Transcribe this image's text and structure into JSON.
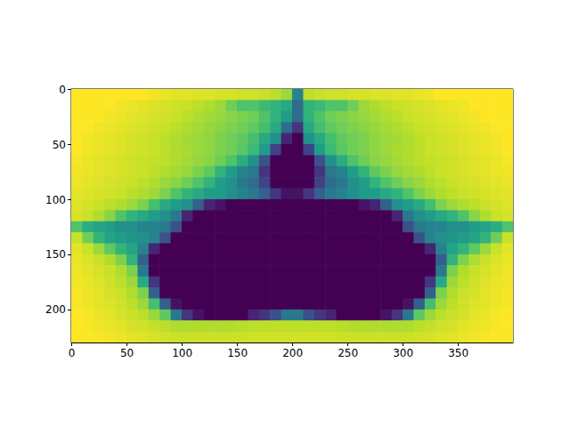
{
  "chart_data": {
    "type": "heatmap",
    "xlim": [
      -0.5,
      399.5
    ],
    "ylim": [
      229.5,
      -0.5
    ],
    "xticks": [
      0,
      50,
      100,
      150,
      200,
      250,
      300,
      350
    ],
    "yticks": [
      0,
      50,
      100,
      150,
      200
    ],
    "grid": false,
    "color_range": [
      0,
      100
    ],
    "x_edges": [
      -0.5,
      9.5,
      19.5,
      29.5,
      39.5,
      49.5,
      59.5,
      69.5,
      79.5,
      89.5,
      99.5,
      109.5,
      119.5,
      129.5,
      139.5,
      149.5,
      159.5,
      169.5,
      179.5,
      189.5,
      199.5,
      209.5,
      219.5,
      229.5,
      239.5,
      249.5,
      259.5,
      269.5,
      279.5,
      289.5,
      299.5,
      309.5,
      319.5,
      329.5,
      339.5,
      349.5,
      359.5,
      369.5,
      379.5,
      389.5,
      399.5
    ],
    "y_edges": [
      -0.5,
      9.5,
      19.5,
      29.5,
      39.5,
      49.5,
      59.5,
      69.5,
      79.5,
      89.5,
      99.5,
      109.5,
      119.5,
      129.5,
      139.5,
      149.5,
      159.5,
      169.5,
      179.5,
      189.5,
      199.5,
      209.5,
      219.5,
      229.5
    ],
    "cells": [
      [
        100,
        100,
        100,
        100,
        100,
        100,
        100,
        98,
        97,
        96,
        96,
        95,
        95,
        94,
        94,
        93,
        93,
        92,
        90,
        85,
        45,
        90,
        92,
        93,
        93,
        94,
        94,
        95,
        95,
        96,
        96,
        97,
        98,
        100,
        100,
        100,
        100,
        100,
        100,
        100
      ],
      [
        100,
        100,
        100,
        100,
        98,
        97,
        96,
        95,
        94,
        93,
        92,
        90,
        88,
        85,
        78,
        72,
        72,
        68,
        65,
        60,
        35,
        65,
        68,
        72,
        72,
        78,
        85,
        88,
        90,
        92,
        93,
        94,
        95,
        96,
        97,
        98,
        100,
        100,
        100,
        100
      ],
      [
        100,
        100,
        100,
        98,
        97,
        96,
        95,
        94,
        93,
        92,
        90,
        88,
        86,
        84,
        82,
        80,
        78,
        72,
        65,
        55,
        35,
        65,
        72,
        78,
        80,
        82,
        84,
        86,
        88,
        90,
        92,
        93,
        94,
        95,
        96,
        97,
        98,
        100,
        100,
        100
      ],
      [
        100,
        100,
        98,
        97,
        96,
        95,
        94,
        93,
        92,
        90,
        88,
        86,
        84,
        82,
        80,
        78,
        75,
        70,
        60,
        35,
        15,
        60,
        70,
        75,
        78,
        80,
        82,
        84,
        86,
        88,
        90,
        92,
        93,
        94,
        95,
        96,
        97,
        98,
        100,
        100
      ],
      [
        100,
        98,
        97,
        96,
        95,
        94,
        93,
        92,
        90,
        88,
        86,
        85,
        83,
        80,
        78,
        75,
        70,
        60,
        50,
        10,
        0,
        50,
        60,
        70,
        75,
        78,
        80,
        83,
        85,
        86,
        88,
        90,
        92,
        93,
        94,
        95,
        96,
        97,
        98,
        100
      ],
      [
        100,
        98,
        97,
        96,
        95,
        94,
        93,
        92,
        90,
        88,
        87,
        85,
        83,
        80,
        78,
        74,
        68,
        55,
        20,
        0,
        0,
        20,
        55,
        68,
        74,
        78,
        80,
        83,
        85,
        87,
        88,
        90,
        92,
        93,
        94,
        95,
        96,
        97,
        98,
        100
      ],
      [
        99,
        97,
        96,
        95,
        94,
        93,
        92,
        91,
        90,
        88,
        86,
        84,
        82,
        78,
        72,
        62,
        50,
        25,
        0,
        0,
        0,
        0,
        25,
        50,
        62,
        72,
        78,
        82,
        84,
        86,
        88,
        90,
        91,
        92,
        93,
        94,
        95,
        96,
        97,
        99
      ],
      [
        98,
        97,
        96,
        95,
        94,
        93,
        92,
        90,
        88,
        86,
        84,
        80,
        75,
        65,
        55,
        45,
        40,
        15,
        0,
        0,
        0,
        0,
        15,
        40,
        45,
        55,
        65,
        75,
        80,
        84,
        86,
        88,
        90,
        92,
        93,
        94,
        95,
        96,
        97,
        98
      ],
      [
        97,
        96,
        95,
        94,
        93,
        92,
        90,
        88,
        85,
        82,
        78,
        72,
        65,
        55,
        50,
        40,
        35,
        20,
        0,
        0,
        0,
        0,
        20,
        35,
        40,
        50,
        55,
        65,
        72,
        78,
        82,
        85,
        88,
        90,
        92,
        93,
        94,
        95,
        96,
        97
      ],
      [
        96,
        95,
        94,
        93,
        92,
        90,
        88,
        85,
        80,
        72,
        65,
        60,
        55,
        55,
        50,
        45,
        40,
        30,
        15,
        5,
        5,
        15,
        30,
        40,
        45,
        50,
        55,
        55,
        60,
        65,
        72,
        80,
        85,
        88,
        90,
        92,
        93,
        94,
        95,
        96
      ],
      [
        95,
        94,
        92,
        90,
        88,
        85,
        80,
        70,
        60,
        55,
        50,
        30,
        10,
        5,
        0,
        0,
        0,
        0,
        0,
        0,
        0,
        0,
        0,
        0,
        0,
        0,
        5,
        10,
        30,
        50,
        55,
        60,
        70,
        80,
        85,
        88,
        90,
        92,
        94,
        95
      ],
      [
        94,
        92,
        88,
        82,
        72,
        65,
        60,
        55,
        50,
        40,
        10,
        0,
        0,
        0,
        0,
        0,
        0,
        0,
        0,
        0,
        0,
        0,
        0,
        0,
        0,
        0,
        0,
        0,
        0,
        10,
        40,
        50,
        55,
        60,
        65,
        72,
        82,
        88,
        92,
        94
      ],
      [
        72,
        62,
        58,
        55,
        50,
        50,
        45,
        45,
        40,
        25,
        0,
        0,
        0,
        0,
        0,
        0,
        0,
        0,
        0,
        0,
        0,
        0,
        0,
        0,
        0,
        0,
        0,
        0,
        0,
        0,
        25,
        40,
        45,
        45,
        50,
        50,
        55,
        58,
        62,
        72
      ],
      [
        92,
        78,
        65,
        58,
        55,
        52,
        50,
        45,
        25,
        0,
        0,
        0,
        0,
        0,
        0,
        0,
        0,
        0,
        0,
        0,
        0,
        0,
        0,
        0,
        0,
        0,
        0,
        0,
        0,
        0,
        0,
        25,
        45,
        50,
        52,
        55,
        58,
        65,
        78,
        92
      ],
      [
        96,
        92,
        85,
        75,
        65,
        58,
        45,
        10,
        0,
        0,
        0,
        0,
        0,
        0,
        0,
        0,
        0,
        0,
        0,
        0,
        0,
        0,
        0,
        0,
        0,
        0,
        0,
        0,
        0,
        0,
        0,
        0,
        10,
        45,
        58,
        65,
        75,
        85,
        92,
        96
      ],
      [
        97,
        95,
        92,
        88,
        80,
        65,
        30,
        0,
        0,
        0,
        0,
        0,
        0,
        0,
        0,
        0,
        0,
        0,
        0,
        0,
        0,
        0,
        0,
        0,
        0,
        0,
        0,
        0,
        0,
        0,
        0,
        0,
        0,
        30,
        65,
        80,
        88,
        92,
        95,
        97
      ],
      [
        98,
        96,
        94,
        92,
        88,
        80,
        40,
        0,
        0,
        0,
        0,
        0,
        0,
        0,
        0,
        0,
        0,
        0,
        0,
        0,
        0,
        0,
        0,
        0,
        0,
        0,
        0,
        0,
        0,
        0,
        0,
        0,
        0,
        40,
        80,
        88,
        92,
        94,
        96,
        98
      ],
      [
        98,
        97,
        95,
        93,
        90,
        85,
        60,
        15,
        0,
        0,
        0,
        0,
        0,
        0,
        0,
        0,
        0,
        0,
        0,
        0,
        0,
        0,
        0,
        0,
        0,
        0,
        0,
        0,
        0,
        0,
        0,
        0,
        15,
        60,
        85,
        90,
        93,
        95,
        97,
        98
      ],
      [
        99,
        97,
        96,
        94,
        92,
        88,
        80,
        30,
        0,
        0,
        0,
        0,
        0,
        0,
        0,
        0,
        0,
        0,
        0,
        0,
        0,
        0,
        0,
        0,
        0,
        0,
        0,
        0,
        0,
        0,
        0,
        0,
        30,
        80,
        88,
        92,
        94,
        96,
        97,
        99
      ],
      [
        99,
        98,
        96,
        95,
        93,
        90,
        85,
        70,
        30,
        5,
        0,
        0,
        0,
        0,
        0,
        0,
        0,
        0,
        0,
        0,
        0,
        0,
        0,
        0,
        0,
        0,
        0,
        0,
        0,
        0,
        5,
        30,
        70,
        85,
        90,
        93,
        95,
        96,
        98,
        99
      ],
      [
        100,
        99,
        97,
        96,
        94,
        92,
        90,
        85,
        75,
        40,
        15,
        5,
        0,
        0,
        0,
        0,
        10,
        15,
        25,
        40,
        40,
        25,
        15,
        10,
        0,
        0,
        0,
        0,
        5,
        15,
        40,
        75,
        85,
        90,
        92,
        94,
        96,
        97,
        99,
        100
      ],
      [
        100,
        99,
        98,
        97,
        96,
        94,
        93,
        91,
        90,
        88,
        88,
        88,
        88,
        88,
        88,
        89,
        90,
        90,
        90,
        90,
        90,
        90,
        90,
        90,
        89,
        88,
        88,
        88,
        88,
        88,
        88,
        90,
        91,
        93,
        94,
        96,
        97,
        98,
        99,
        100
      ],
      [
        100,
        100,
        99,
        98,
        97,
        96,
        95,
        94,
        93,
        92,
        92,
        92,
        92,
        92,
        92,
        92,
        93,
        93,
        93,
        93,
        93,
        93,
        93,
        93,
        92,
        92,
        92,
        92,
        92,
        92,
        92,
        93,
        94,
        95,
        96,
        97,
        98,
        99,
        100,
        100
      ]
    ]
  }
}
